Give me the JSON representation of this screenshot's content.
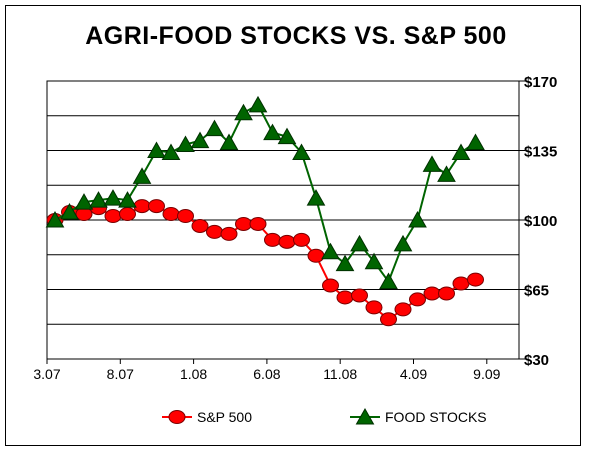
{
  "chart_data": {
    "type": "line",
    "title": "AGRI-FOOD STOCKS VS. S&P 500",
    "xlabel": "",
    "ylabel": "",
    "x_tick_labels": [
      "3.07",
      "8.07",
      "1.08",
      "6.08",
      "11.08",
      "4.09",
      "9.09"
    ],
    "y_ticks": [
      30,
      65,
      100,
      135,
      170
    ],
    "y_tick_labels": [
      "$30",
      "$65",
      "$100",
      "$135",
      "$170"
    ],
    "ylim": [
      30,
      170
    ],
    "grid": true,
    "legend_position": "bottom",
    "series": [
      {
        "name": "S&P 500",
        "color": "#ff0000",
        "marker": "circle",
        "values": [
          100,
          104,
          103,
          106,
          102,
          103,
          107,
          107,
          103,
          102,
          97,
          94,
          93,
          98,
          98,
          90,
          89,
          90,
          82,
          67,
          61,
          62,
          56,
          50,
          55,
          60,
          63,
          63,
          68,
          70
        ]
      },
      {
        "name": "FOOD STOCKS",
        "color": "#006400",
        "marker": "triangle",
        "values": [
          100,
          104,
          109,
          110,
          111,
          110,
          122,
          135,
          134,
          138,
          140,
          146,
          139,
          154,
          158,
          144,
          142,
          134,
          111,
          84,
          78,
          88,
          79,
          69,
          88,
          100,
          128,
          123,
          134,
          139
        ]
      }
    ]
  }
}
